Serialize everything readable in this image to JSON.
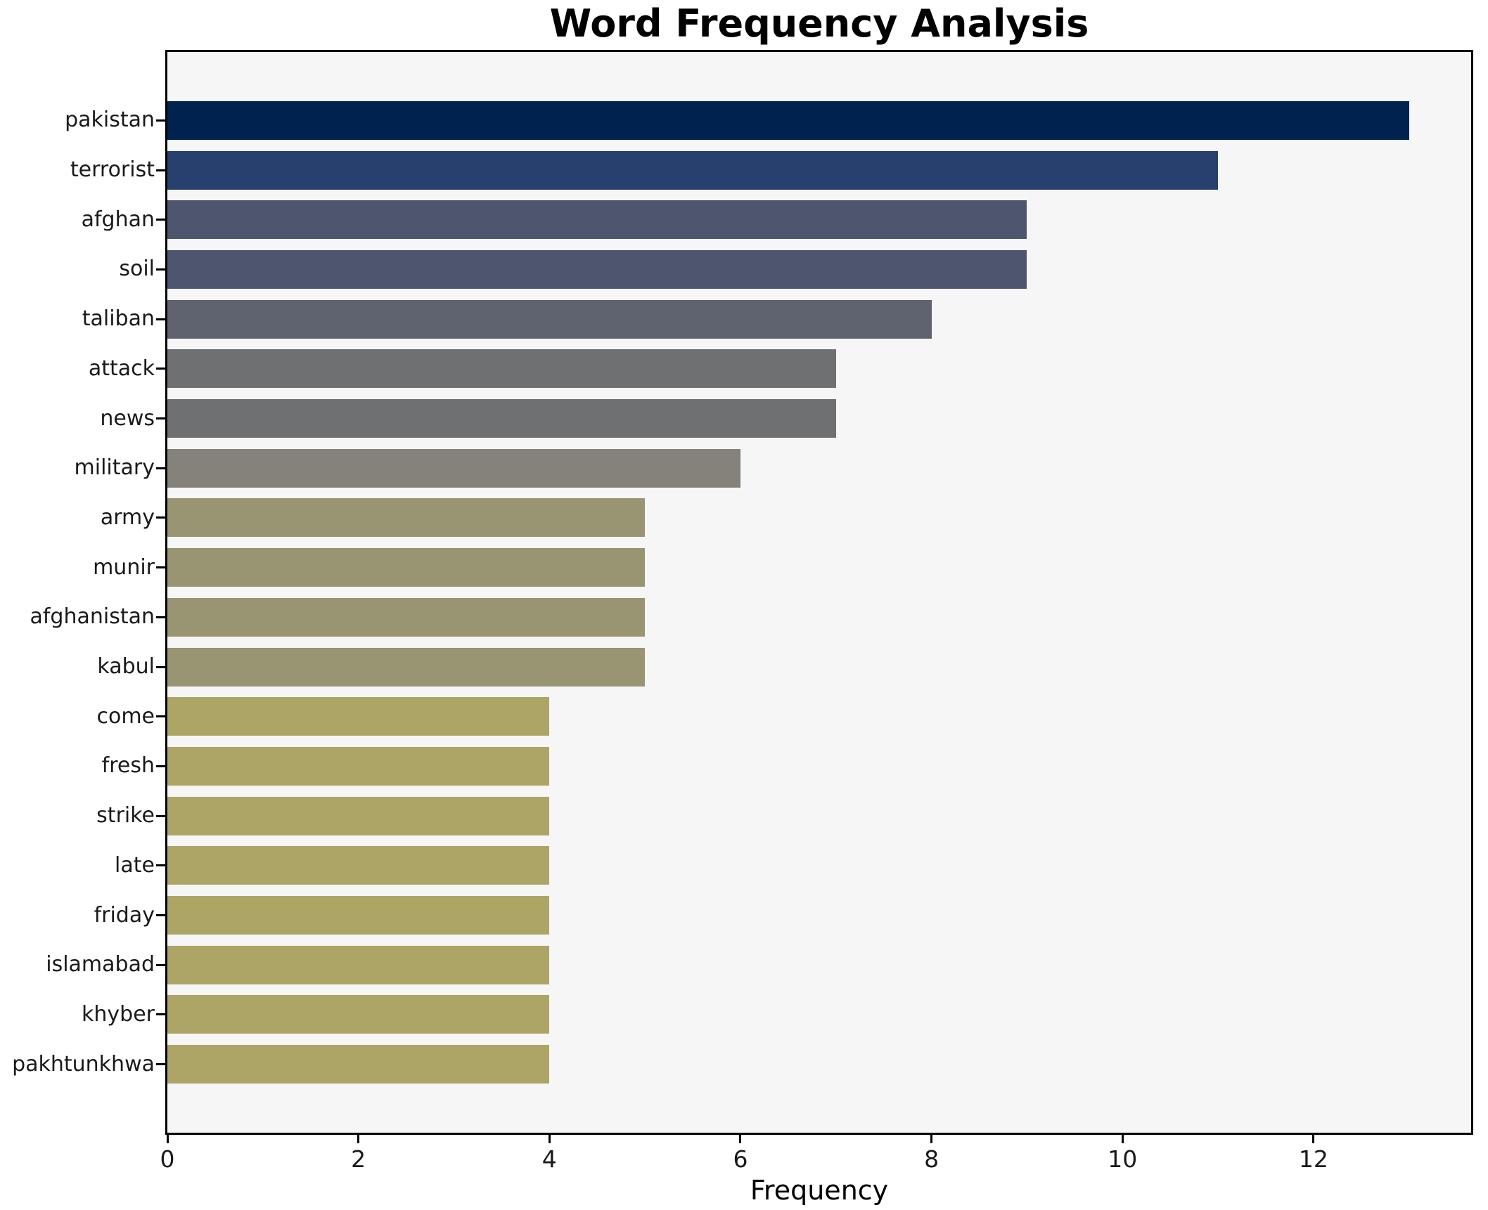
{
  "title": "Word Frequency Analysis",
  "xlabel": "Frequency",
  "chart_data": {
    "type": "bar",
    "orientation": "horizontal",
    "title": "Word Frequency Analysis",
    "xlabel": "Frequency",
    "ylabel": "",
    "categories": [
      "pakistan",
      "terrorist",
      "afghan",
      "soil",
      "taliban",
      "attack",
      "news",
      "military",
      "army",
      "munir",
      "afghanistan",
      "kabul",
      "come",
      "fresh",
      "strike",
      "late",
      "friday",
      "islamabad",
      "khyber",
      "pakhtunkhwa"
    ],
    "values": [
      13,
      11,
      9,
      9,
      8,
      7,
      7,
      6,
      5,
      5,
      5,
      5,
      4,
      4,
      4,
      4,
      4,
      4,
      4,
      4
    ],
    "bar_colors": [
      "#00224e",
      "#27406d",
      "#4e556f",
      "#4e556f",
      "#5f6370",
      "#6f7072",
      "#6f7072",
      "#84827a",
      "#999471",
      "#999471",
      "#999471",
      "#999471",
      "#ada566",
      "#ada566",
      "#ada566",
      "#ada566",
      "#ada566",
      "#ada566",
      "#ada566",
      "#ada566"
    ],
    "xticks": [
      0,
      2,
      4,
      6,
      8,
      10,
      12
    ],
    "xlim": [
      0,
      13.65
    ],
    "grid": false,
    "legend": null,
    "colormap": "cividis",
    "plot_background": "#f6f6f7",
    "figure_background": "#ffffff"
  }
}
